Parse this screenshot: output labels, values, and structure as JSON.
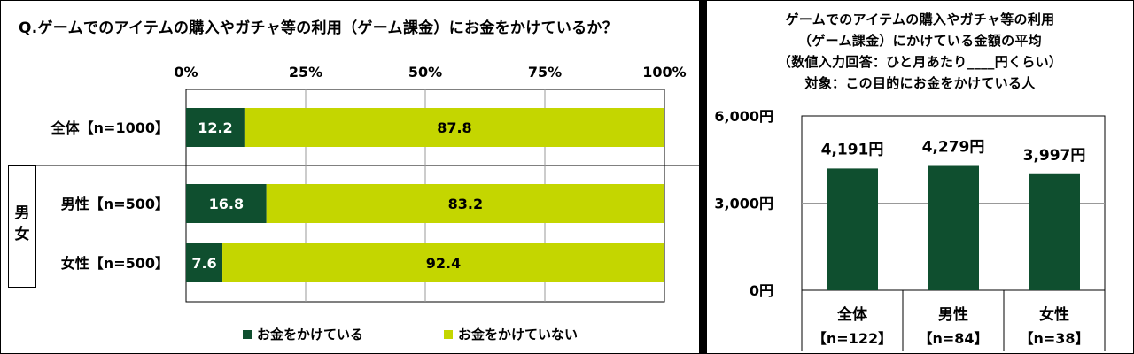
{
  "left_title": "Q.ゲームでのアイテムの購入やガチャ等の利用（ゲーム課金）にお金をかけているか？",
  "right_title_lines": [
    "ゲームでのアイテムの購入やガチャ等の利用",
    "（ゲーム課金）にかけている金額の平均",
    "（数値入力回答：ひと月あたり____円くらい）",
    "対象：この目的にお金をかけている人"
  ],
  "group_label": [
    "男",
    "女"
  ],
  "colors": {
    "dark": "#0f4f2f",
    "light": "#c4d600"
  },
  "chart_data": [
    {
      "type": "bar",
      "orientation": "horizontal-stacked",
      "categories": [
        "全体【n=1000】",
        "男性【n=500】",
        "女性【n=500】"
      ],
      "series": [
        {
          "name": "お金をかけている",
          "values": [
            12.2,
            16.8,
            7.6
          ]
        },
        {
          "name": "お金をかけていない",
          "values": [
            87.8,
            83.2,
            92.4
          ]
        }
      ],
      "xlim": [
        0,
        100
      ],
      "xticks": [
        "0%",
        "25%",
        "50%",
        "75%",
        "100%"
      ],
      "legend": "bottom"
    },
    {
      "type": "bar",
      "categories": [
        {
          "name": "全体",
          "n": "【n=122】"
        },
        {
          "name": "男性",
          "n": "【n=84】"
        },
        {
          "name": "女性",
          "n": "【n=38】"
        }
      ],
      "values": [
        4191,
        4279,
        3997
      ],
      "labels": [
        "4,191円",
        "4,279円",
        "3,997円"
      ],
      "ylim": [
        0,
        6000
      ],
      "yticks": [
        "0円",
        "3,000円",
        "6,000円"
      ]
    }
  ]
}
